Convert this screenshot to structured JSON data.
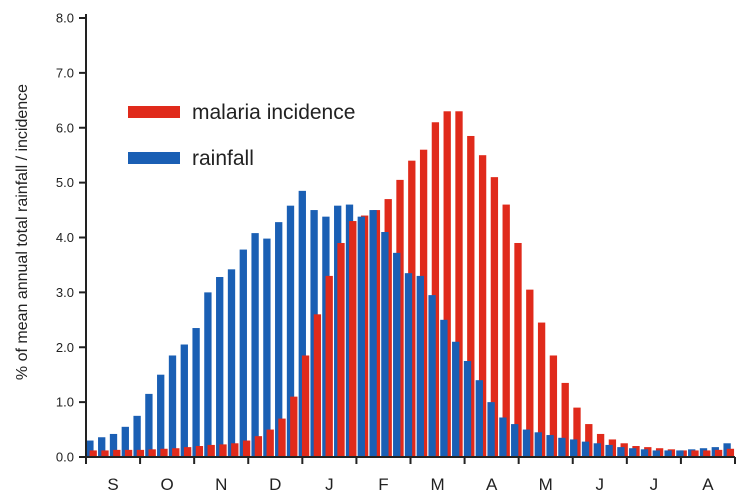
{
  "chart_data": {
    "type": "bar",
    "title": "",
    "xlabel": "",
    "ylabel": "% of mean annual total rainfall / incidence",
    "ylim": [
      0,
      8
    ],
    "yticks": [
      "0.0",
      "1.0",
      "2.0",
      "3.0",
      "4.0",
      "5.0",
      "6.0",
      "7.0",
      "8.0"
    ],
    "months": [
      "S",
      "O",
      "N",
      "D",
      "J",
      "F",
      "M",
      "A",
      "M",
      "J",
      "J",
      "A"
    ],
    "legend_position": "upper-left",
    "grid": false,
    "series": [
      {
        "name": "malaria incidence",
        "color": "#e02a1b",
        "values": [
          0.12,
          0.12,
          0.13,
          0.13,
          0.13,
          0.14,
          0.15,
          0.16,
          0.18,
          0.2,
          0.22,
          0.23,
          0.25,
          0.3,
          0.38,
          0.5,
          0.7,
          1.1,
          1.85,
          2.6,
          3.3,
          3.9,
          4.3,
          4.4,
          4.5,
          4.7,
          5.05,
          5.4,
          5.6,
          6.1,
          6.3,
          6.3,
          5.85,
          5.5,
          5.1,
          4.6,
          3.9,
          3.05,
          2.45,
          1.85,
          1.35,
          0.9,
          0.6,
          0.42,
          0.32,
          0.25,
          0.2,
          0.18,
          0.16,
          0.14,
          0.12,
          0.12,
          0.12,
          0.13,
          0.15
        ]
      },
      {
        "name": "rainfall",
        "color": "#1a5fb4",
        "values": [
          0.3,
          0.36,
          0.42,
          0.55,
          0.75,
          1.15,
          1.5,
          1.85,
          2.05,
          2.35,
          3.0,
          3.28,
          3.42,
          3.78,
          4.08,
          3.98,
          4.28,
          4.58,
          4.85,
          4.5,
          4.38,
          4.58,
          4.6,
          4.38,
          4.5,
          4.1,
          3.72,
          3.35,
          3.3,
          2.95,
          2.5,
          2.1,
          1.75,
          1.4,
          1.0,
          0.72,
          0.6,
          0.5,
          0.45,
          0.4,
          0.35,
          0.32,
          0.28,
          0.25,
          0.22,
          0.18,
          0.16,
          0.14,
          0.12,
          0.12,
          0.12,
          0.14,
          0.16,
          0.18,
          0.25
        ]
      }
    ]
  }
}
